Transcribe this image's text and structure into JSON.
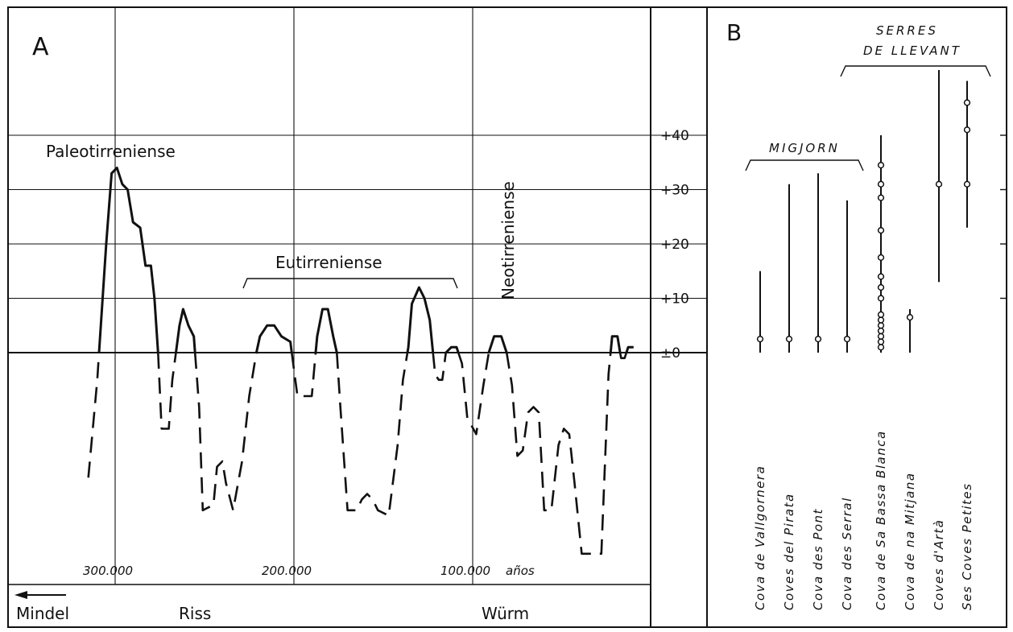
{
  "chart_data": [
    {
      "type": "line",
      "panel_label": "A",
      "ylim": [
        -40,
        45
      ],
      "y_ticks": [
        {
          "value": 40,
          "label": "+40"
        },
        {
          "value": 30,
          "label": "+30"
        },
        {
          "value": 20,
          "label": "+20"
        },
        {
          "value": 10,
          "label": "+10"
        },
        {
          "value": 0,
          "label": "±0"
        }
      ],
      "x_axis_reversed": true,
      "xlim": [
        396000,
        -20000
      ],
      "x_ticks": [
        {
          "value": 300000,
          "label": "300.000"
        },
        {
          "value": 200000,
          "label": "200.000"
        },
        {
          "value": 100000,
          "label": "100.000"
        }
      ],
      "x_unit_label": "años",
      "periods": [
        {
          "label": "Mindel",
          "arrow": true
        },
        {
          "label": "Riss"
        },
        {
          "label": "Würm"
        }
      ],
      "annotations": {
        "paleo": "Paleotirreniense",
        "eu": "Eutirreniense",
        "neo": "Neotirreniense"
      },
      "grid": true,
      "series": [
        {
          "style": "sea-level curve (solid above ±0, dashed below)",
          "points": [
            [
              315000,
              -23
            ],
            [
              310000,
              -5
            ],
            [
              305000,
              20
            ],
            [
              302000,
              33
            ],
            [
              299000,
              34
            ],
            [
              296000,
              31
            ],
            [
              293000,
              30
            ],
            [
              290000,
              24
            ],
            [
              286000,
              23
            ],
            [
              283000,
              16
            ],
            [
              280000,
              16
            ],
            [
              278000,
              10
            ],
            [
              276000,
              0
            ],
            [
              274000,
              -14
            ],
            [
              270000,
              -14
            ],
            [
              268000,
              -5
            ],
            [
              264000,
              5
            ],
            [
              262000,
              8
            ],
            [
              259000,
              5
            ],
            [
              256000,
              3
            ],
            [
              253000,
              -10
            ],
            [
              251000,
              -29
            ],
            [
              245000,
              -28
            ],
            [
              243000,
              -21
            ],
            [
              240000,
              -20
            ],
            [
              238000,
              -24
            ],
            [
              234000,
              -29
            ],
            [
              229000,
              -20
            ],
            [
              225000,
              -8
            ],
            [
              221000,
              0
            ],
            [
              219000,
              3
            ],
            [
              215000,
              5
            ],
            [
              211000,
              5
            ],
            [
              207000,
              3
            ],
            [
              202000,
              2
            ],
            [
              198000,
              -8
            ],
            [
              190000,
              -8
            ],
            [
              187000,
              3
            ],
            [
              184000,
              8
            ],
            [
              181000,
              8
            ],
            [
              178000,
              3
            ],
            [
              176000,
              0
            ],
            [
              174000,
              -10
            ],
            [
              170000,
              -29
            ],
            [
              165000,
              -29
            ],
            [
              162000,
              -27
            ],
            [
              159000,
              -26
            ],
            [
              156000,
              -27
            ],
            [
              153000,
              -29
            ],
            [
              147000,
              -30
            ],
            [
              142000,
              -17
            ],
            [
              139000,
              -5
            ],
            [
              136000,
              1
            ],
            [
              134000,
              9
            ],
            [
              130000,
              12
            ],
            [
              127000,
              10
            ],
            [
              124000,
              6
            ],
            [
              121000,
              -4
            ],
            [
              119000,
              -5
            ],
            [
              117000,
              -5
            ],
            [
              115000,
              0
            ],
            [
              112000,
              1
            ],
            [
              109000,
              1
            ],
            [
              106000,
              -2
            ],
            [
              103000,
              -12
            ],
            [
              98000,
              -15
            ],
            [
              94000,
              -6
            ],
            [
              91000,
              0
            ],
            [
              88000,
              3
            ],
            [
              84000,
              3
            ],
            [
              81000,
              0
            ],
            [
              78000,
              -6
            ],
            [
              75000,
              -19
            ],
            [
              72000,
              -18
            ],
            [
              69000,
              -11
            ],
            [
              66000,
              -10
            ],
            [
              63000,
              -11
            ],
            [
              60000,
              -29
            ],
            [
              56000,
              -29
            ],
            [
              52000,
              -17
            ],
            [
              49000,
              -14
            ],
            [
              46000,
              -15
            ],
            [
              43000,
              -24
            ],
            [
              39000,
              -37
            ],
            [
              28000,
              -37
            ],
            [
              24000,
              -4
            ],
            [
              22000,
              3
            ],
            [
              19000,
              3
            ],
            [
              17000,
              -1
            ],
            [
              15000,
              -1
            ],
            [
              13000,
              1
            ],
            [
              10000,
              1
            ]
          ]
        }
      ]
    },
    {
      "type": "range",
      "panel_label": "B",
      "ylim": [
        -40,
        45
      ],
      "y_ticks": [
        40,
        30,
        20,
        10,
        0
      ],
      "groups": [
        {
          "label": "MIGJORN",
          "members": [
            0,
            1,
            2,
            3
          ]
        },
        {
          "label_lines": [
            "SERRES",
            "DE LLEVANT"
          ],
          "members": [
            4,
            5,
            6,
            7
          ]
        }
      ],
      "categories": [
        "Cova de Vallgornera",
        "Coves del Pirata",
        "Cova des Pont",
        "Cova des Serral",
        "Cova de Sa Bassa Blanca",
        "Cova de na Mitjana",
        "Coves d'Artà",
        "Ses Coves Petites"
      ],
      "ranges": [
        [
          0,
          15
        ],
        [
          0,
          31
        ],
        [
          0,
          33
        ],
        [
          0,
          28
        ],
        [
          0,
          40
        ],
        [
          0,
          8
        ],
        [
          13,
          52
        ],
        [
          23,
          50
        ]
      ],
      "points": [
        [
          2.5
        ],
        [
          2.5
        ],
        [
          2.5
        ],
        [
          2.5
        ],
        [
          1,
          2,
          3,
          4,
          5,
          6,
          7,
          10,
          12,
          14,
          17.5,
          22.5,
          28.5,
          31,
          34.5
        ],
        [
          6.5
        ],
        [
          31
        ],
        [
          31,
          41,
          46
        ]
      ]
    }
  ]
}
